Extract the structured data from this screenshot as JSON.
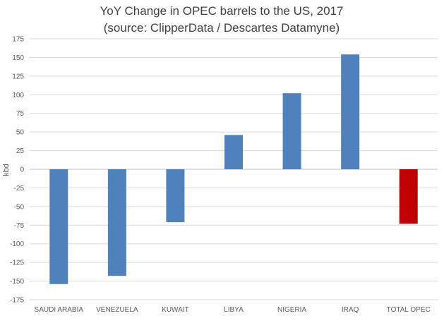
{
  "chart_data": {
    "type": "bar",
    "title": "YoY Change in OPEC barrels to the US, 2017",
    "subtitle": "(source: ClipperData / Descartes Datamyne)",
    "xlabel": "",
    "ylabel": "kbd",
    "ylim": [
      -175,
      175
    ],
    "yticks": [
      175,
      150,
      125,
      100,
      75,
      50,
      25,
      0,
      -25,
      -50,
      -75,
      -100,
      -125,
      -150,
      -175
    ],
    "grid": true,
    "legend": false,
    "categories": [
      "SAUDI ARABIA",
      "VENEZUELA",
      "KUWAIT",
      "LIBYA",
      "NIGERIA",
      "IRAQ",
      "TOTAL OPEC"
    ],
    "values": [
      -154,
      -143,
      -71,
      46,
      102,
      154,
      -73
    ],
    "colors": [
      "#4F81BD",
      "#4F81BD",
      "#4F81BD",
      "#4F81BD",
      "#4F81BD",
      "#4F81BD",
      "#C00000"
    ]
  }
}
